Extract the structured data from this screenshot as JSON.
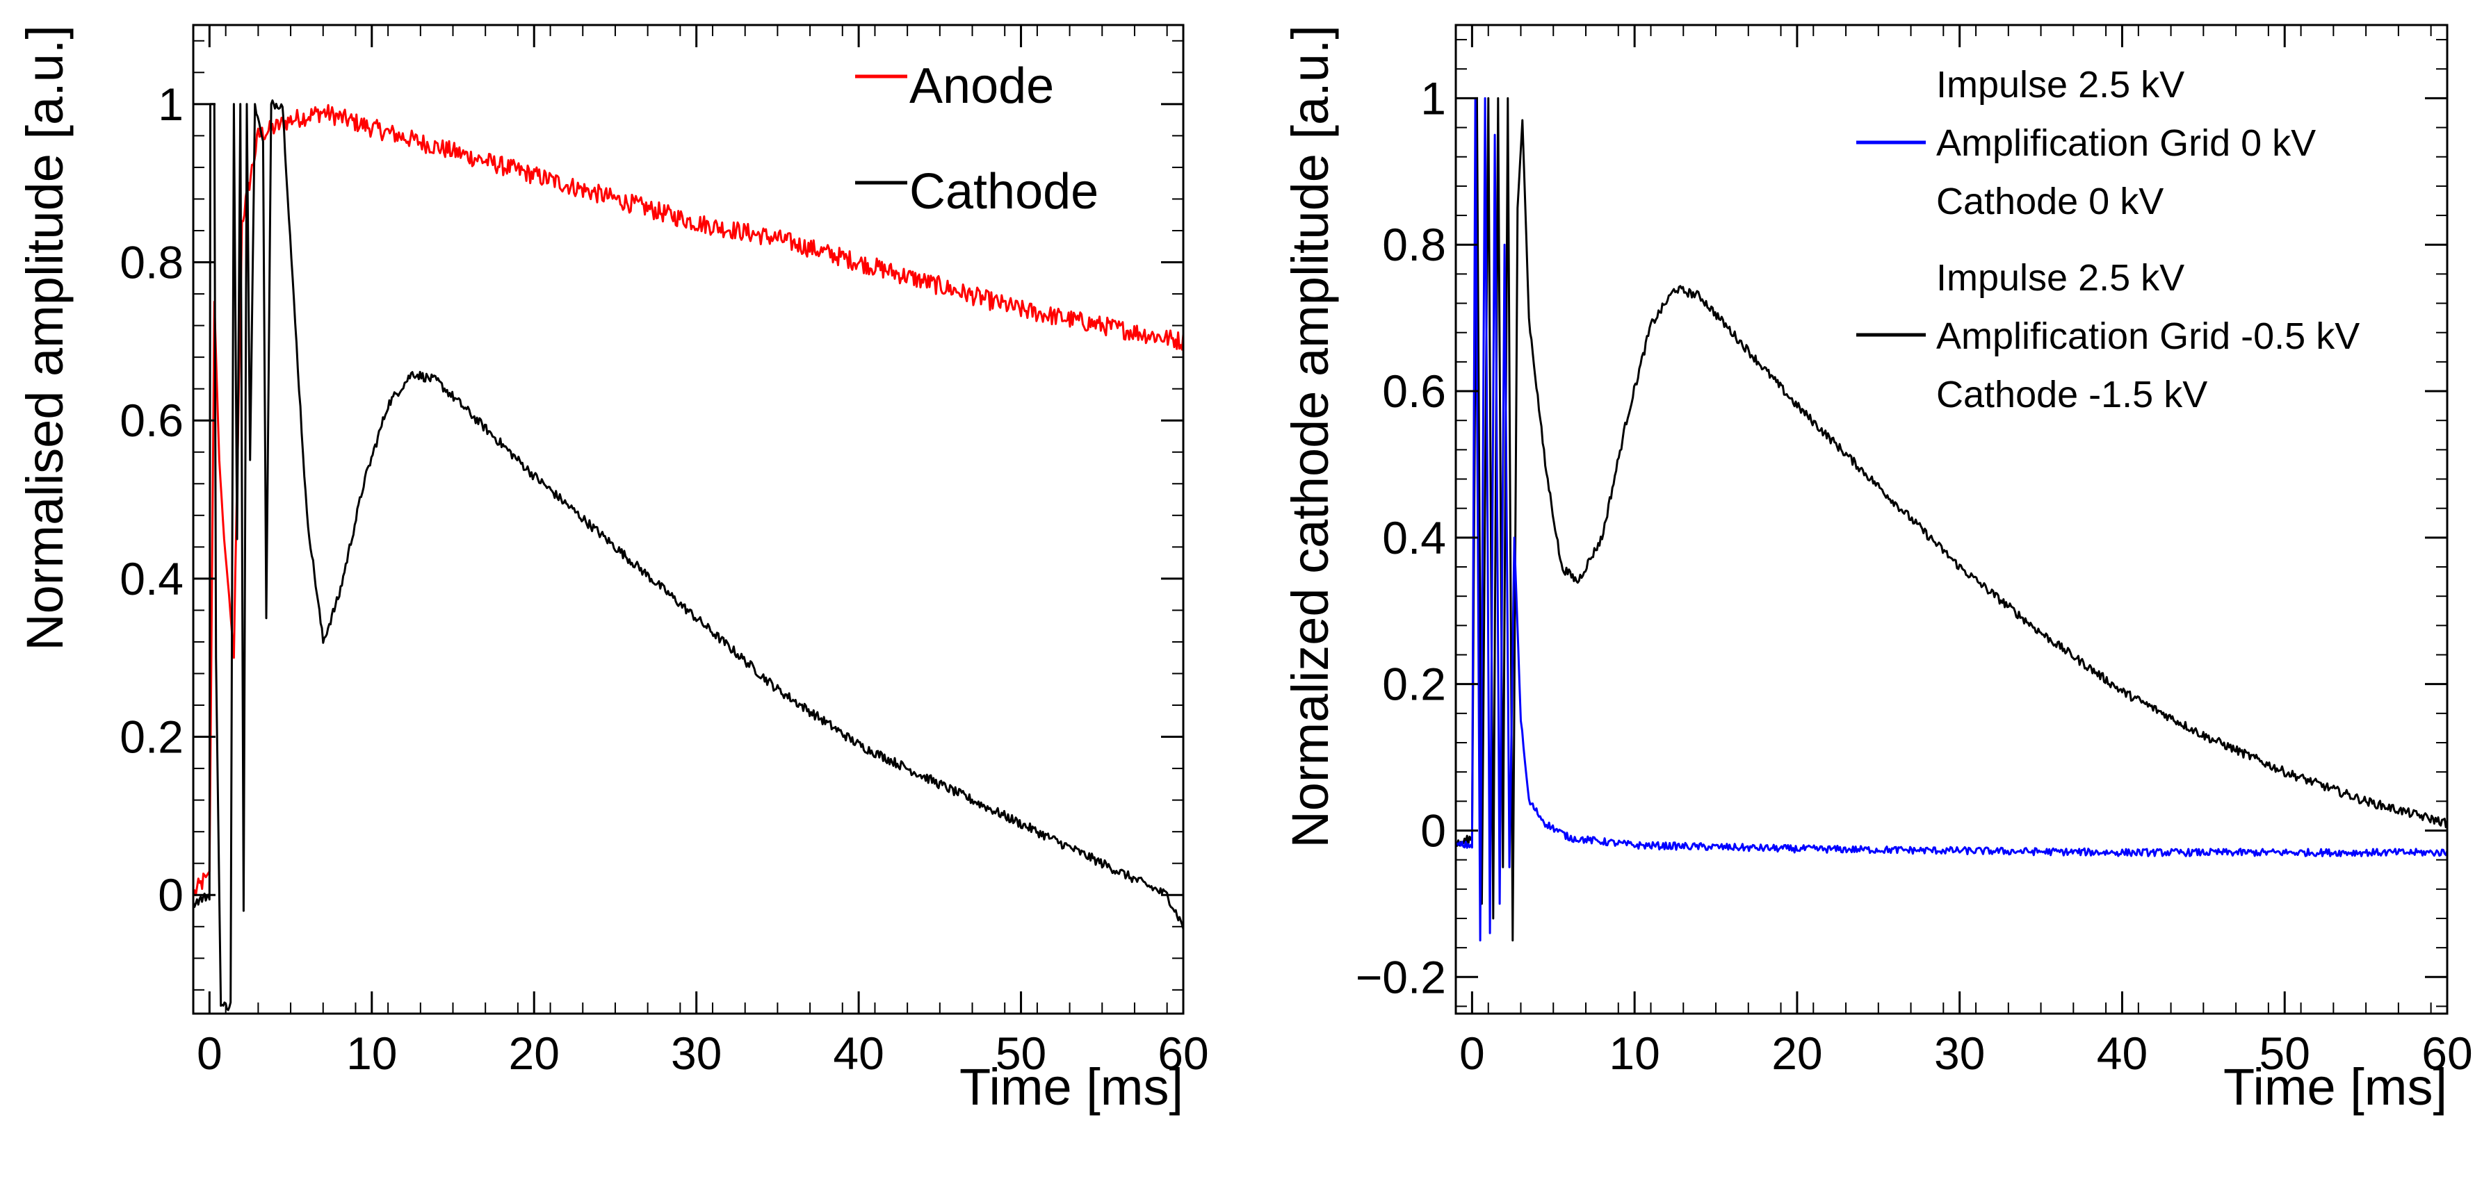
{
  "chart_data": [
    {
      "type": "line",
      "panel": "left",
      "xlabel": "Time [ms]",
      "ylabel": "Normalised amplitude [a.u.]",
      "xlim": [
        -1,
        60
      ],
      "ylim": [
        -0.15,
        1.1
      ],
      "xticks": [
        0,
        10,
        20,
        30,
        40,
        50,
        60
      ],
      "yticks": [
        0,
        0.2,
        0.4,
        0.6,
        0.8,
        1
      ],
      "xtick_labels": [
        "0",
        "10",
        "20",
        "30",
        "40",
        "50",
        "60"
      ],
      "ytick_labels": [
        "0",
        "0.2",
        "0.4",
        "0.6",
        "0.8",
        "1"
      ],
      "legend": [
        {
          "label": "Anode",
          "color": "#ff0000"
        },
        {
          "label": "Cathode",
          "color": "#000000"
        }
      ],
      "series": [
        {
          "name": "Anode",
          "color": "#ff0000",
          "noise": 0.012,
          "points": [
            [
              -1,
              0.0
            ],
            [
              -0.3,
              0.02
            ],
            [
              0,
              0.03
            ],
            [
              0.3,
              0.75
            ],
            [
              0.6,
              0.55
            ],
            [
              0.9,
              0.45
            ],
            [
              1.2,
              0.38
            ],
            [
              1.5,
              0.3
            ],
            [
              2,
              0.85
            ],
            [
              3,
              0.96
            ],
            [
              5,
              0.98
            ],
            [
              7,
              0.99
            ],
            [
              10,
              0.97
            ],
            [
              15,
              0.94
            ],
            [
              20,
              0.91
            ],
            [
              25,
              0.88
            ],
            [
              30,
              0.85
            ],
            [
              35,
              0.83
            ],
            [
              40,
              0.8
            ],
            [
              45,
              0.77
            ],
            [
              50,
              0.74
            ],
            [
              55,
              0.72
            ],
            [
              60,
              0.7
            ]
          ]
        },
        {
          "name": "Cathode",
          "color": "#000000",
          "noise": 0.006,
          "points": [
            [
              -1,
              -0.01
            ],
            [
              0,
              0.0
            ],
            [
              0.05,
              1.0
            ],
            [
              0.3,
              1.0
            ],
            [
              0.4,
              0.3
            ],
            [
              0.7,
              -0.14
            ],
            [
              1.3,
              -0.14
            ],
            [
              1.5,
              1.0
            ],
            [
              1.7,
              0.45
            ],
            [
              1.9,
              1.0
            ],
            [
              2.1,
              -0.02
            ],
            [
              2.3,
              1.0
            ],
            [
              2.5,
              0.55
            ],
            [
              2.8,
              1.0
            ],
            [
              3.3,
              0.95
            ],
            [
              3.5,
              0.35
            ],
            [
              3.8,
              1.0
            ],
            [
              4.5,
              1.0
            ],
            [
              5.2,
              0.75
            ],
            [
              6,
              0.48
            ],
            [
              7,
              0.32
            ],
            [
              8,
              0.38
            ],
            [
              9.5,
              0.52
            ],
            [
              11,
              0.62
            ],
            [
              12.5,
              0.66
            ],
            [
              14,
              0.65
            ],
            [
              16,
              0.61
            ],
            [
              20,
              0.53
            ],
            [
              25,
              0.44
            ],
            [
              30,
              0.35
            ],
            [
              35,
              0.26
            ],
            [
              40,
              0.19
            ],
            [
              45,
              0.14
            ],
            [
              50,
              0.09
            ],
            [
              55,
              0.04
            ],
            [
              57,
              0.02
            ],
            [
              59,
              0.0
            ],
            [
              60,
              -0.04
            ]
          ]
        }
      ]
    },
    {
      "type": "line",
      "panel": "right",
      "xlabel": "Time [ms]",
      "ylabel": "Normalized cathode amplitude [a.u.]",
      "xlim": [
        -1,
        60
      ],
      "ylim": [
        -0.25,
        1.1
      ],
      "xticks": [
        0,
        10,
        20,
        30,
        40,
        50,
        60
      ],
      "yticks": [
        -0.2,
        0,
        0.2,
        0.4,
        0.6,
        0.8,
        1
      ],
      "xtick_labels": [
        "0",
        "10",
        "20",
        "30",
        "40",
        "50",
        "60"
      ],
      "ytick_labels": [
        "−0.2",
        "0",
        "0.2",
        "0.4",
        "0.6",
        "0.8",
        "1"
      ],
      "legend": [
        {
          "label": "Impulse 2.5 kV",
          "color": "#0000ff",
          "marker": false
        },
        {
          "label": "Amplification Grid 0 kV",
          "color": "#0000ff",
          "marker": true
        },
        {
          "label": "Cathode 0 kV",
          "color": "#0000ff",
          "marker": false
        },
        {
          "label": "Impulse 2.5 kV",
          "color": "#000000",
          "marker": false
        },
        {
          "label": "Amplification Grid -0.5 kV",
          "color": "#000000",
          "marker": true
        },
        {
          "label": "Cathode -1.5 kV",
          "color": "#000000",
          "marker": false
        }
      ],
      "series": [
        {
          "name": "Cathode (grid -0.5 kV, cathode -1.5 kV)",
          "color": "#000000",
          "noise": 0.006,
          "points": [
            [
              -1,
              -0.02
            ],
            [
              0,
              -0.01
            ],
            [
              0.3,
              1.0
            ],
            [
              0.6,
              -0.1
            ],
            [
              1.0,
              1.0
            ],
            [
              1.3,
              -0.12
            ],
            [
              1.6,
              1.0
            ],
            [
              1.9,
              -0.05
            ],
            [
              2.2,
              1.0
            ],
            [
              2.5,
              -0.15
            ],
            [
              2.8,
              0.85
            ],
            [
              3.1,
              0.97
            ],
            [
              3.5,
              0.7
            ],
            [
              4.5,
              0.5
            ],
            [
              5.5,
              0.36
            ],
            [
              6.5,
              0.34
            ],
            [
              8,
              0.4
            ],
            [
              9.5,
              0.56
            ],
            [
              11,
              0.69
            ],
            [
              12.5,
              0.74
            ],
            [
              14,
              0.73
            ],
            [
              16,
              0.68
            ],
            [
              20,
              0.58
            ],
            [
              25,
              0.47
            ],
            [
              30,
              0.36
            ],
            [
              35,
              0.27
            ],
            [
              40,
              0.19
            ],
            [
              45,
              0.13
            ],
            [
              50,
              0.08
            ],
            [
              55,
              0.04
            ],
            [
              60,
              0.01
            ]
          ]
        },
        {
          "name": "Cathode (grid 0 kV, cathode 0 kV)",
          "color": "#0000ff",
          "noise": 0.005,
          "points": [
            [
              -1,
              -0.02
            ],
            [
              0,
              -0.02
            ],
            [
              0.2,
              1.0
            ],
            [
              0.5,
              -0.15
            ],
            [
              0.8,
              1.0
            ],
            [
              1.1,
              -0.14
            ],
            [
              1.4,
              0.95
            ],
            [
              1.7,
              -0.1
            ],
            [
              2.0,
              0.8
            ],
            [
              2.3,
              -0.05
            ],
            [
              2.6,
              0.4
            ],
            [
              3,
              0.15
            ],
            [
              3.5,
              0.04
            ],
            [
              4.5,
              0.01
            ],
            [
              6,
              -0.01
            ],
            [
              10,
              -0.02
            ],
            [
              20,
              -0.025
            ],
            [
              40,
              -0.03
            ],
            [
              60,
              -0.03
            ]
          ]
        }
      ]
    }
  ]
}
